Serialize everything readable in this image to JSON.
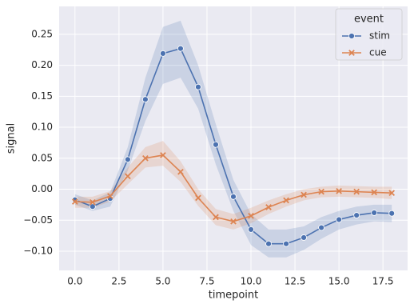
{
  "chart_data": {
    "type": "line",
    "x_label": "timepoint",
    "y_label": "signal",
    "x": [
      0,
      1,
      2,
      3,
      4,
      5,
      6,
      7,
      8,
      9,
      10,
      11,
      12,
      13,
      14,
      15,
      16,
      17,
      18
    ],
    "series": [
      {
        "name": "stim",
        "color": "#4c72b0",
        "marker": "o",
        "values": [
          -0.017,
          -0.028,
          -0.015,
          0.048,
          0.145,
          0.219,
          0.227,
          0.165,
          0.072,
          -0.012,
          -0.065,
          -0.088,
          -0.088,
          -0.078,
          -0.062,
          -0.049,
          -0.042,
          -0.038,
          -0.039
        ],
        "ci_lower": [
          -0.025,
          -0.035,
          -0.028,
          0.03,
          0.11,
          0.17,
          0.18,
          0.13,
          0.04,
          -0.035,
          -0.09,
          -0.11,
          -0.11,
          -0.098,
          -0.08,
          -0.065,
          -0.057,
          -0.052,
          -0.053
        ],
        "ci_upper": [
          -0.008,
          -0.018,
          -0.005,
          0.068,
          0.18,
          0.262,
          0.272,
          0.2,
          0.105,
          0.015,
          -0.04,
          -0.065,
          -0.065,
          -0.06,
          -0.045,
          -0.035,
          -0.028,
          -0.025,
          -0.025
        ]
      },
      {
        "name": "cue",
        "color": "#dd8452",
        "marker": "x",
        "values": [
          -0.02,
          -0.021,
          -0.011,
          0.021,
          0.05,
          0.055,
          0.028,
          -0.014,
          -0.045,
          -0.052,
          -0.043,
          -0.029,
          -0.018,
          -0.009,
          -0.004,
          -0.003,
          -0.004,
          -0.005,
          -0.006
        ],
        "ci_lower": [
          -0.03,
          -0.03,
          -0.02,
          0.008,
          0.035,
          0.038,
          0.012,
          -0.027,
          -0.058,
          -0.065,
          -0.055,
          -0.04,
          -0.028,
          -0.018,
          -0.013,
          -0.012,
          -0.013,
          -0.014,
          -0.016
        ],
        "ci_upper": [
          -0.012,
          -0.012,
          -0.003,
          0.035,
          0.068,
          0.078,
          0.045,
          0.0,
          -0.032,
          -0.04,
          -0.03,
          -0.018,
          -0.008,
          0.0,
          0.004,
          0.006,
          0.005,
          0.004,
          0.004
        ]
      }
    ],
    "legend_title": "event",
    "legend": "upper right",
    "grid": true,
    "xlim": [
      -0.9,
      18.9
    ],
    "xticks": [
      {
        "value": 0,
        "label": "0.0"
      },
      2.5,
      {
        "value": 5,
        "label": "5.0"
      },
      7.5,
      {
        "value": 10,
        "label": "10.0"
      },
      12.5,
      {
        "value": 15,
        "label": "15.0"
      },
      17.5
    ],
    "ylim": [
      -0.131,
      0.295
    ],
    "yticks": [
      {
        "value": -0.1,
        "label": "−0.10"
      },
      {
        "value": -0.05,
        "label": "−0.05"
      },
      {
        "value": 0,
        "label": "0.00"
      },
      0.05,
      {
        "value": 0.1,
        "label": "0.10"
      },
      0.15,
      {
        "value": 0.2,
        "label": "0.20"
      },
      0.25
    ]
  }
}
